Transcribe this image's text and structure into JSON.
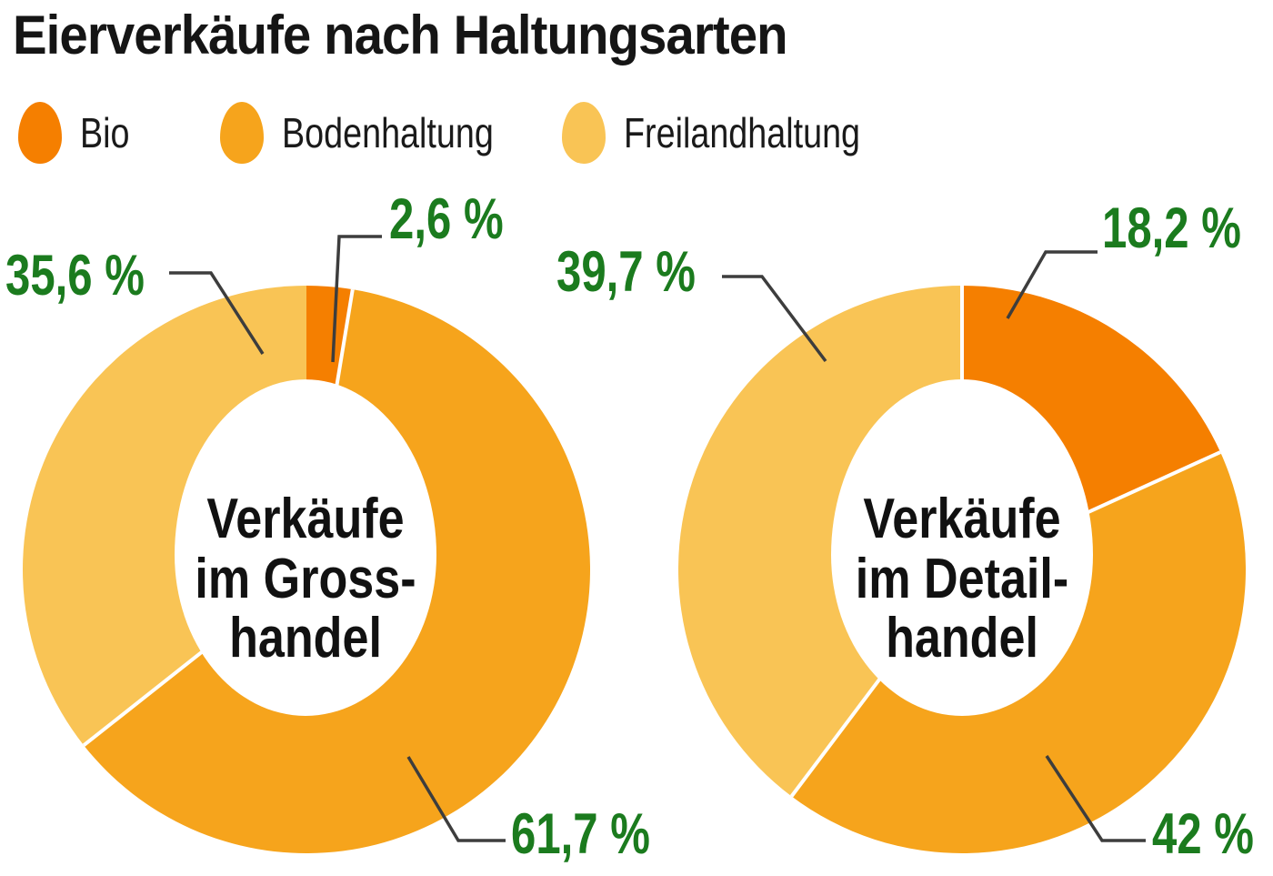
{
  "title": "Eierverkäufe nach Haltungsarten",
  "chart_data": {
    "type": "pie",
    "subtype": "donut-pair",
    "title": "Eierverkäufe nach Haltungsarten",
    "units": "%",
    "legend_position": "top",
    "categories": [
      "Bio",
      "Bodenhaltung",
      "Freilandhaltung"
    ],
    "colors": [
      "#f57f00",
      "#f6a41c",
      "#f9c455"
    ],
    "label_color": "#1b7b1e",
    "leader_color": "#3d3d3d",
    "series": [
      {
        "name": "Verkäufe im Grosshandel",
        "center_label": [
          "Verkäufe",
          "im Gross-",
          "handel"
        ],
        "values": [
          2.6,
          61.7,
          35.6
        ],
        "value_labels": [
          "2,6 %",
          "61,7 %",
          "35,6 %"
        ]
      },
      {
        "name": "Verkäufe im Detailhandel",
        "center_label": [
          "Verkäufe",
          "im Detail-",
          "handel"
        ],
        "values": [
          18.2,
          42,
          39.7
        ],
        "value_labels": [
          "18,2 %",
          "42 %",
          "39,7 %"
        ]
      }
    ]
  }
}
